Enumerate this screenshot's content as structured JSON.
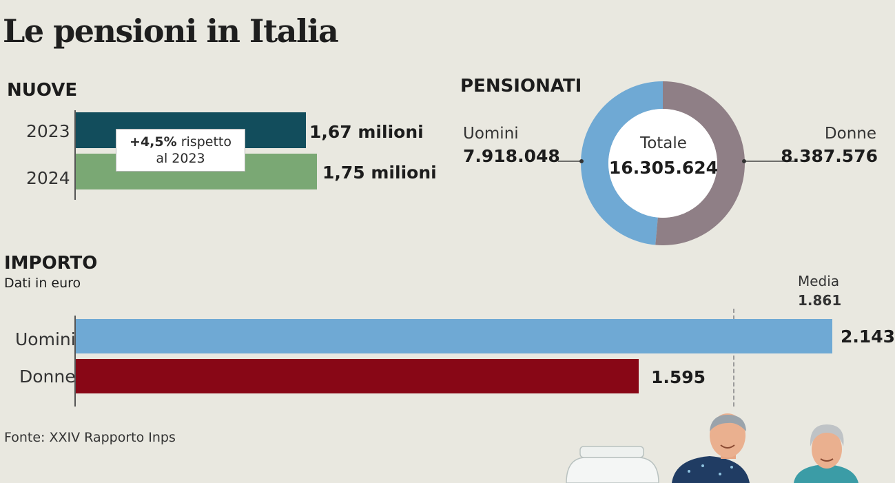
{
  "title": "Le pensioni in Italia",
  "source": "Fonte: XXIV Rapporto Inps",
  "colors": {
    "background": "#e9e8e0",
    "bar_2023": "#124d5c",
    "bar_2024": "#7aa874",
    "men": "#6fa9d4",
    "women": "#8f7f86",
    "importo_women": "#880716"
  },
  "chart_data": [
    {
      "id": "nuove",
      "type": "bar",
      "orientation": "horizontal",
      "title": "NUOVE",
      "unit": "milioni",
      "categories": [
        "2023",
        "2024"
      ],
      "values": [
        1.67,
        1.75
      ],
      "value_labels": [
        "1,67 milioni",
        "1,75 milioni"
      ],
      "annotation": {
        "highlight": "+4,5%",
        "text": "rispetto",
        "line2": "al 2023"
      }
    },
    {
      "id": "pensionati",
      "type": "pie",
      "title": "PENSIONATI",
      "center_label": "Totale",
      "center_value": "16.305.624",
      "total": 16305624,
      "slices": [
        {
          "name": "Uomini",
          "value": 7918048,
          "label": "7.918.048",
          "color": "#6fa9d4"
        },
        {
          "name": "Donne",
          "value": 8387576,
          "label": "8.387.576",
          "color": "#8f7f86"
        }
      ]
    },
    {
      "id": "importo",
      "type": "bar",
      "orientation": "horizontal",
      "title": "IMPORTO",
      "subtitle": "Dati in euro",
      "categories": [
        "Uomini",
        "Donne"
      ],
      "values": [
        2143,
        1595
      ],
      "value_labels": [
        "2.143",
        "1.595"
      ],
      "reference_line": {
        "label": "Media",
        "value": 1861,
        "value_label": "1.861"
      }
    }
  ]
}
